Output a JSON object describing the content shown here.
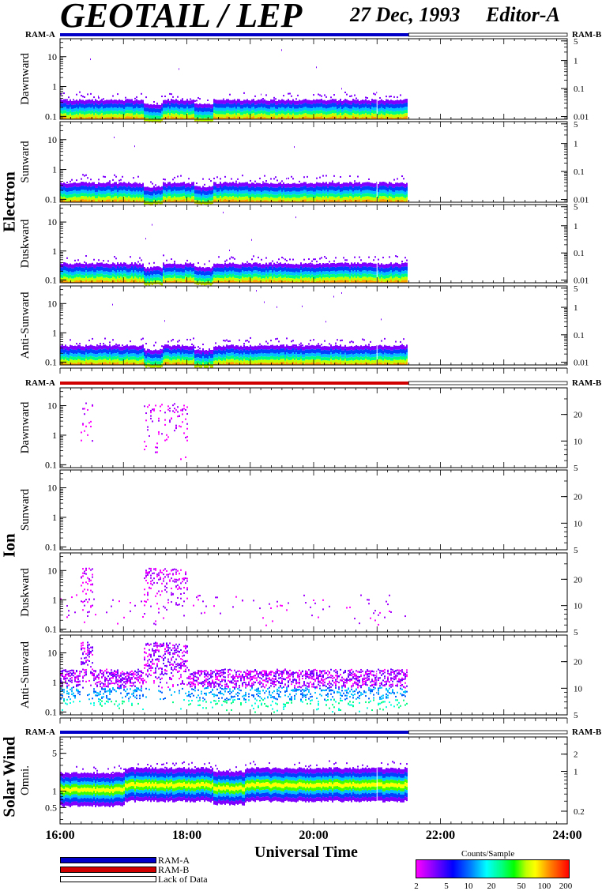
{
  "header": {
    "title": "GEOTAIL / LEP",
    "date": "27 Dec, 1993",
    "editor": "Editor-A"
  },
  "groups": [
    {
      "name": "Electron",
      "ram_left": "RAM-A",
      "ram_right": "RAM-B",
      "ram_bar_color": "#0000c8"
    },
    {
      "name": "Ion",
      "ram_left": "RAM-A",
      "ram_right": "RAM-B",
      "ram_bar_color": "#d00000"
    },
    {
      "name": "Solar Wind",
      "ram_left": "RAM-A",
      "ram_right": "RAM-B",
      "ram_bar_color": "#0000c8"
    }
  ],
  "legend": {
    "ram_a": {
      "label": "RAM-A",
      "color": "#0000c8"
    },
    "ram_b": {
      "label": "RAM-B",
      "color": "#d00000"
    },
    "lack": {
      "label": "Lack of Data",
      "color": "#ffffff"
    }
  },
  "colorbar": {
    "title": "Counts/Sample",
    "ticks": [
      "2",
      "5",
      "10",
      "20",
      "50",
      "100",
      "200"
    ]
  },
  "chart_data": {
    "type": "heatmap",
    "xlabel": "Universal Time",
    "x_ticks": [
      "16:00",
      "18:00",
      "20:00",
      "22:00",
      "24:00"
    ],
    "xlim_hours": [
      16,
      24
    ],
    "data_end_hour": 21.5,
    "panels": [
      {
        "group": "Electron",
        "label": "Dawnward",
        "left_ticks": [
          "10",
          "1",
          "0.1"
        ],
        "left_range": [
          0.08,
          40
        ],
        "right_ticks": [
          "5",
          "1",
          "0.1",
          "0.01"
        ],
        "right_range": [
          0.008,
          6
        ],
        "core_top": 0.5,
        "activity": "low"
      },
      {
        "group": "Electron",
        "label": "Sunward",
        "left_ticks": [
          "10",
          "1",
          "0.1"
        ],
        "left_range": [
          0.08,
          40
        ],
        "right_ticks": [
          "5",
          "1",
          "0.1",
          "0.01"
        ],
        "right_range": [
          0.008,
          6
        ],
        "core_top": 0.5,
        "activity": "low"
      },
      {
        "group": "Electron",
        "label": "Duskward",
        "left_ticks": [
          "10",
          "1",
          "0.1"
        ],
        "left_range": [
          0.08,
          40
        ],
        "right_ticks": [
          "5",
          "1",
          "0.1",
          "0.01"
        ],
        "right_range": [
          0.008,
          6
        ],
        "core_top": 0.5,
        "activity": "low"
      },
      {
        "group": "Electron",
        "label": "Anti-Sunward",
        "left_ticks": [
          "10",
          "1",
          "0.1"
        ],
        "left_range": [
          0.08,
          40
        ],
        "right_ticks": [
          "5",
          "1",
          "0.1",
          "0.01"
        ],
        "right_range": [
          0.008,
          6
        ],
        "core_top": 0.5,
        "activity": "low"
      },
      {
        "group": "Ion",
        "label": "Dawnward",
        "left_ticks": [
          "10",
          "1",
          "0.1"
        ],
        "left_range": [
          0.08,
          40
        ],
        "right_ticks": [
          "20",
          "10",
          "5"
        ],
        "right_range": [
          5,
          40
        ],
        "core_top": 0.0,
        "activity": "sparse"
      },
      {
        "group": "Ion",
        "label": "Sunward",
        "left_ticks": [
          "10",
          "1",
          "0.1"
        ],
        "left_range": [
          0.08,
          40
        ],
        "right_ticks": [
          "20",
          "10",
          "5"
        ],
        "right_range": [
          5,
          40
        ],
        "core_top": 0.0,
        "activity": "very_sparse"
      },
      {
        "group": "Ion",
        "label": "Duskward",
        "left_ticks": [
          "10",
          "1",
          "0.1"
        ],
        "left_range": [
          0.08,
          40
        ],
        "right_ticks": [
          "20",
          "10",
          "5"
        ],
        "right_range": [
          5,
          40
        ],
        "core_top": 0.0,
        "activity": "medium"
      },
      {
        "group": "Ion",
        "label": "Anti-Sunward",
        "left_ticks": [
          "10",
          "1",
          "0.1"
        ],
        "left_range": [
          0.08,
          40
        ],
        "right_ticks": [
          "20",
          "10",
          "5"
        ],
        "right_range": [
          5,
          40
        ],
        "core_top": 0.0,
        "activity": "dense"
      },
      {
        "group": "Solar Wind",
        "label": "Omni.",
        "left_ticks": [
          "5",
          "1",
          "0.5"
        ],
        "left_range": [
          0.25,
          10
        ],
        "right_ticks": [
          "2",
          "1",
          "0.2"
        ],
        "right_range": [
          0.12,
          4
        ],
        "core_top": 0.9,
        "activity": "solarwind"
      }
    ]
  }
}
